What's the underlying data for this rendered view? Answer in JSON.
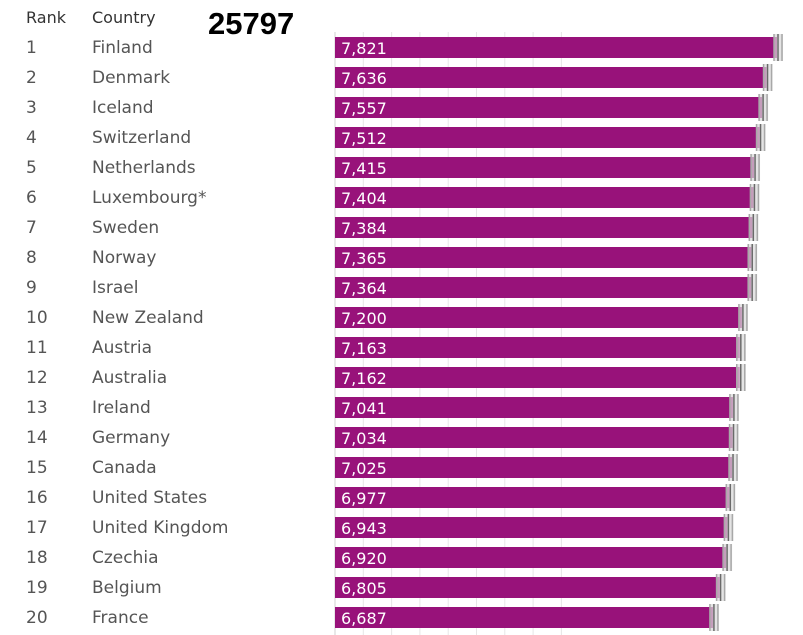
{
  "header": {
    "rank": "Rank",
    "country": "Country",
    "code": "25797"
  },
  "colors": {
    "bar": "#98127a",
    "grid": "#e6e6e6",
    "whisker": "#a8a8a8"
  },
  "chart_data": {
    "type": "bar",
    "orientation": "horizontal",
    "grid": true,
    "xlim": [
      0,
      8.0
    ],
    "ranks": [
      "1",
      "2",
      "3",
      "4",
      "5",
      "6",
      "7",
      "8",
      "9",
      "10",
      "11",
      "12",
      "13",
      "14",
      "15",
      "16",
      "17",
      "18",
      "19",
      "20"
    ],
    "categories": [
      "Finland",
      "Denmark",
      "Iceland",
      "Switzerland",
      "Netherlands",
      "Luxembourg*",
      "Sweden",
      "Norway",
      "Israel",
      "New Zealand",
      "Austria",
      "Australia",
      "Ireland",
      "Germany",
      "Canada",
      "United States",
      "United Kingdom",
      "Czechia",
      "Belgium",
      "France"
    ],
    "values": [
      7.821,
      7.636,
      7.557,
      7.512,
      7.415,
      7.404,
      7.384,
      7.365,
      7.364,
      7.2,
      7.163,
      7.162,
      7.041,
      7.034,
      7.025,
      6.977,
      6.943,
      6.92,
      6.805,
      6.687
    ],
    "labels": [
      "7,821",
      "7,636",
      "7,557",
      "7,512",
      "7,415",
      "7,404",
      "7,384",
      "7,365",
      "7,364",
      "7,200",
      "7,163",
      "7,162",
      "7,041",
      "7,034",
      "7,025",
      "6,977",
      "6,943",
      "6,920",
      "6,805",
      "6,687"
    ]
  }
}
